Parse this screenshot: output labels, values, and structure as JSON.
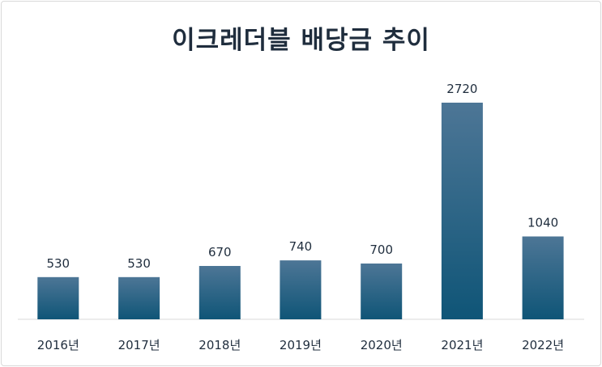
{
  "chart_data": {
    "type": "bar",
    "title": "이크레더블 배당금 추이",
    "categories": [
      "2016년",
      "2017년",
      "2018년",
      "2019년",
      "2020년",
      "2021년",
      "2022년"
    ],
    "values": [
      530,
      530,
      670,
      740,
      700,
      2720,
      1040
    ],
    "data_labels": [
      "530",
      "530",
      "670",
      "740",
      "700",
      "2720",
      "1040"
    ],
    "xlabel": "",
    "ylabel": "",
    "ylim": [
      0,
      2720
    ],
    "grid": false,
    "legend": "none",
    "colors": {
      "bar_top": "#4d7696",
      "bar_bottom": "#0f5577",
      "axis": "#d9d9d9",
      "text": "#1f2d3d"
    }
  }
}
